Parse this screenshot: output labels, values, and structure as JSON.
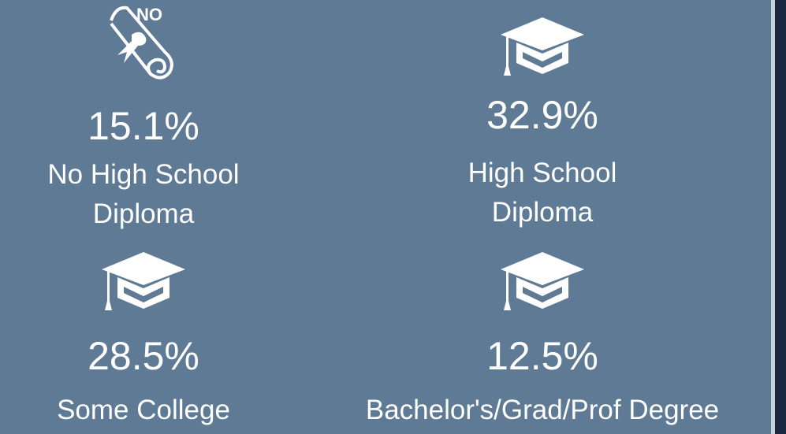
{
  "items": [
    {
      "icon_text": "NO",
      "value": "15.1%",
      "label_lines": [
        "No High School",
        "Diploma"
      ]
    },
    {
      "value": "32.9%",
      "label_lines": [
        "High School",
        "Diploma"
      ]
    },
    {
      "value": "28.5%",
      "label_lines": [
        "Some College"
      ]
    },
    {
      "value": "12.5%",
      "label_lines": [
        "Bachelor's/Grad/Prof Degree"
      ]
    }
  ]
}
